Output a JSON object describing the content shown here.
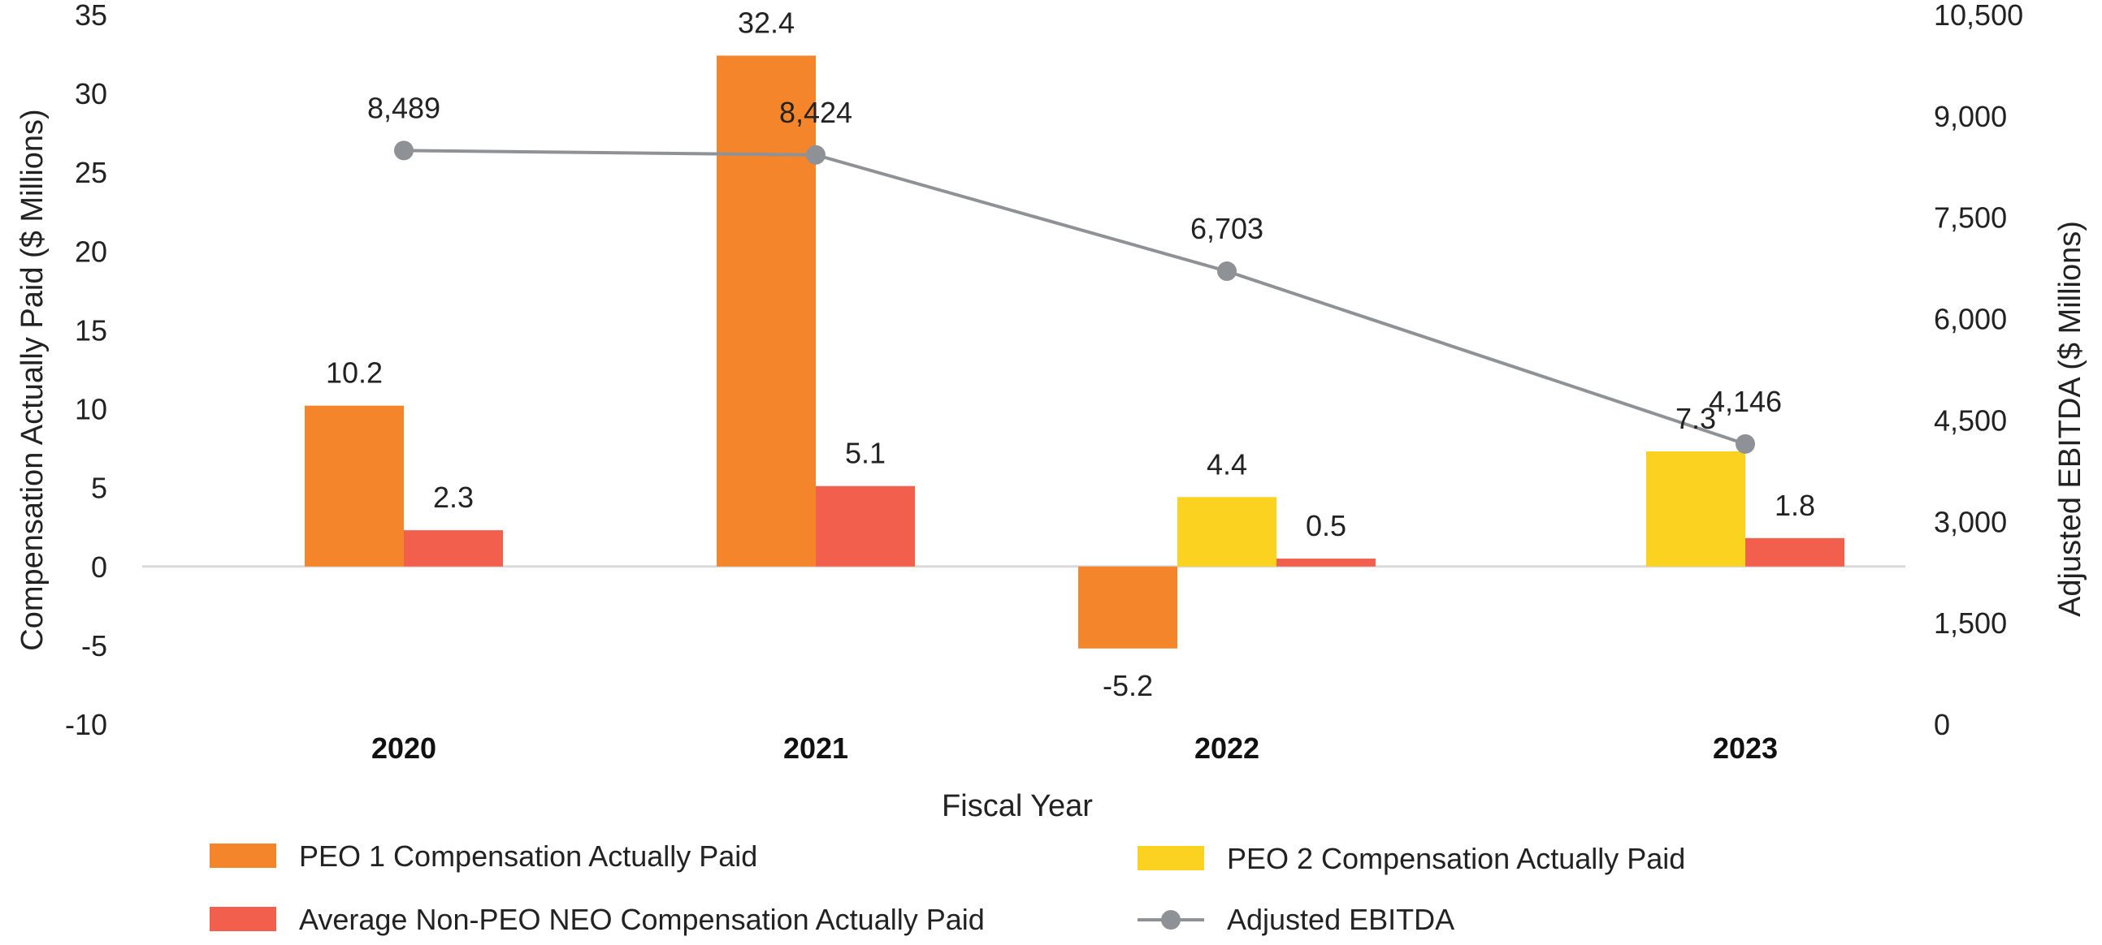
{
  "chart_data": {
    "type": "bar",
    "categories": [
      "2020",
      "2021",
      "2022",
      "2023"
    ],
    "xlabel": "Fiscal Year",
    "ylabel": "Compensation Actually Paid ($ Millions)",
    "y2label": "Adjusted EBITDA ($ Millions)",
    "ylim": [
      -10,
      35
    ],
    "yticks": [
      "-10",
      "-5",
      "0",
      "5",
      "10",
      "15",
      "20",
      "25",
      "30",
      "35"
    ],
    "y2lim": [
      0,
      10500
    ],
    "y2ticks": [
      "0",
      "1,500",
      "3,000",
      "4,500",
      "6,000",
      "7,500",
      "9,000",
      "10,500"
    ],
    "grid": false,
    "legend_position": "bottom",
    "series": [
      {
        "name": "PEO 1 Compensation Actually Paid",
        "type": "bar",
        "axis": "left",
        "color": "#F5852B",
        "values": [
          10.2,
          32.4,
          -5.2,
          null
        ],
        "labels": [
          "10.2",
          "32.4",
          "-5.2",
          ""
        ]
      },
      {
        "name": "PEO 2 Compensation Actually Paid",
        "type": "bar",
        "axis": "left",
        "color": "#FBD21F",
        "values": [
          null,
          null,
          4.4,
          7.3
        ],
        "labels": [
          "",
          "",
          "4.4",
          "7.3"
        ]
      },
      {
        "name": "Average Non-PEO NEO Compensation Actually Paid",
        "type": "bar",
        "axis": "left",
        "color": "#F2604D",
        "values": [
          2.3,
          5.1,
          0.5,
          1.8
        ],
        "labels": [
          "2.3",
          "5.1",
          "0.5",
          "1.8"
        ]
      },
      {
        "name": "Adjusted EBITDA",
        "type": "line",
        "axis": "right",
        "color": "#8E9297",
        "values": [
          8489,
          8424,
          6703,
          4146
        ],
        "labels": [
          "8,489",
          "8,424",
          "6,703",
          "4,146"
        ]
      }
    ]
  }
}
